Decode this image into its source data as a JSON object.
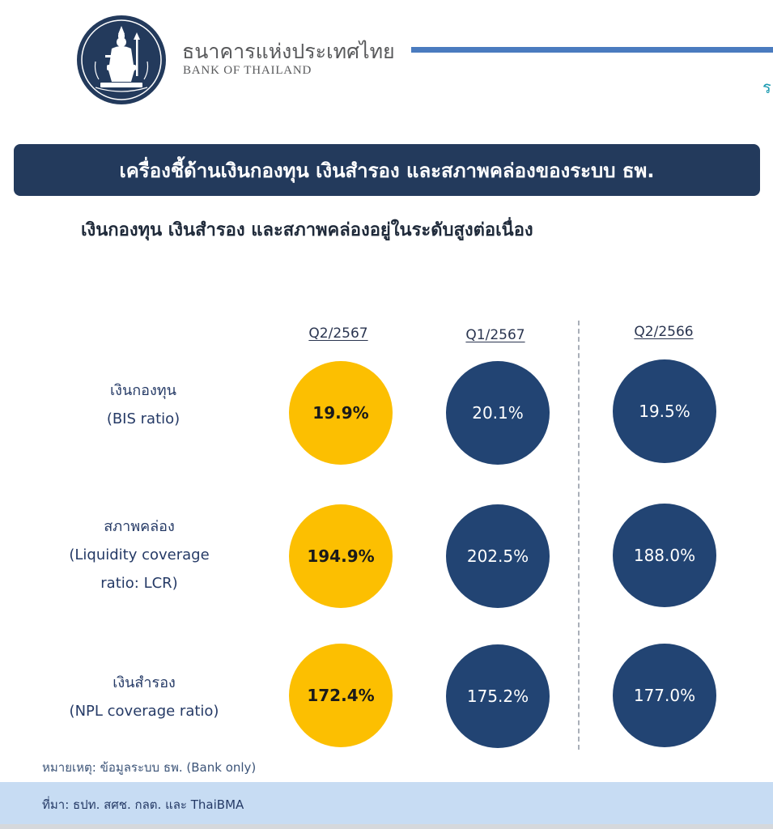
{
  "header": {
    "bank_name_th": "ธนาคารแห่งประเทศไทย",
    "bank_name_en": "BANK OF THAILAND",
    "logo_icon": "bank-of-thailand-seal-icon",
    "edge_glyph": "ร",
    "colors": {
      "line": "#4a7bbf",
      "text": "#58595b"
    }
  },
  "title": "เครื่องชี้ด้านเงินกองทุน เงินสำรอง และสภาพคล่องของระบบ ธพ.",
  "subtitle": "เงินกองทุน เงินสำรอง และสภาพคล่องอยู่ในระดับสูงต่อเนื่อง",
  "columns": [
    "Q2/2567",
    "Q1/2567",
    "Q2/2566"
  ],
  "rows": [
    {
      "label_lines": [
        "เงินกองทุน",
        "(BIS ratio)"
      ],
      "values": [
        "19.9%",
        "20.1%",
        "19.5%"
      ]
    },
    {
      "label_lines": [
        "สภาพคล่อง",
        "(Liquidity coverage",
        "ratio: LCR)"
      ],
      "values": [
        "194.9%",
        "202.5%",
        "188.0%"
      ]
    },
    {
      "label_lines": [
        "เงินสำรอง",
        "(NPL coverage ratio)"
      ],
      "values": [
        "172.4%",
        "175.2%",
        "177.0%"
      ]
    }
  ],
  "note": "หมายเหตุ: ข้อมูลระบบ ธพ. (Bank only)",
  "source": "ที่มา: ธปท. สศช. กลต. และ ThaiBMA",
  "colors": {
    "title_bar": "#233a5c",
    "current_circle": "#fcbf01",
    "past_circle": "#224473",
    "source_bar": "#c7dcf3"
  }
}
